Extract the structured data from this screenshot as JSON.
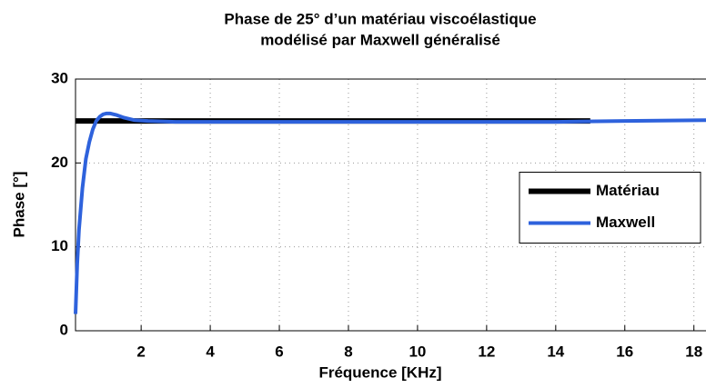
{
  "chart_data": {
    "type": "line",
    "title": [
      "Phase de 25° d’un matériau viscoélastique",
      "modélisé par Maxwell généralisé"
    ],
    "x_label": "Fréquence [KHz]",
    "y_label": "Phase [°]",
    "xlim": [
      0.1,
      18.35
    ],
    "ylim": [
      0,
      30
    ],
    "xticks": [
      2,
      4,
      6,
      8,
      10,
      12,
      14,
      16,
      18
    ],
    "yticks": [
      0,
      10,
      20,
      30
    ],
    "grid": true,
    "legend": "east",
    "series": [
      {
        "name": "Matériau",
        "color": "#000000",
        "width": 6,
        "x": [
          0.1,
          15
        ],
        "values": [
          25,
          25
        ]
      },
      {
        "name": "Maxwell",
        "color": "#2e62dc",
        "width": 4,
        "x": [
          0.1,
          0.15,
          0.2,
          0.3,
          0.4,
          0.5,
          0.6,
          0.7,
          0.8,
          0.9,
          1.0,
          1.1,
          1.3,
          1.5,
          1.8,
          2.2,
          3,
          4,
          6,
          8,
          10,
          12,
          14,
          16,
          18.35
        ],
        "values": [
          2,
          8,
          12,
          17,
          20.5,
          22.5,
          24,
          25,
          25.5,
          25.8,
          25.9,
          25.9,
          25.7,
          25.4,
          25.1,
          25.0,
          24.9,
          24.9,
          24.9,
          24.9,
          24.9,
          24.9,
          24.9,
          25.0,
          25.1
        ]
      }
    ]
  }
}
